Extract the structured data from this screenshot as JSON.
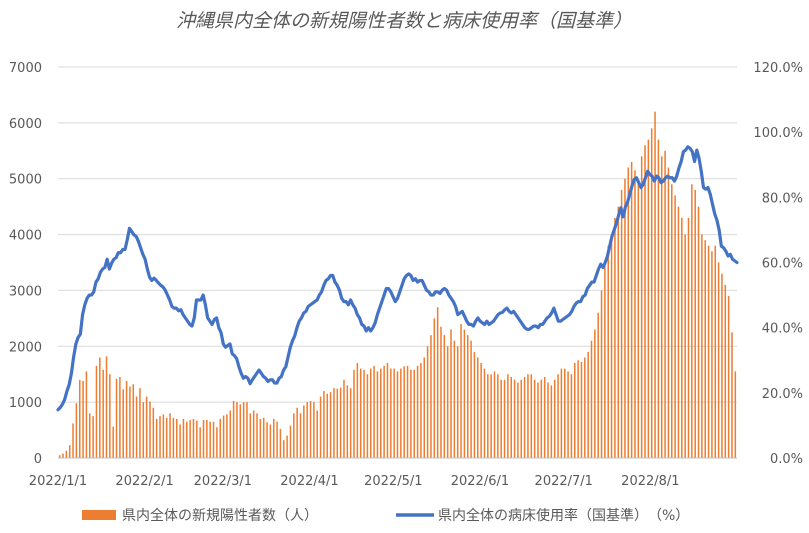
{
  "chart_data": {
    "type": "bar+line",
    "title": "沖縄県内全体の新規陽性者数と病床使用率（国基準）",
    "x_tick_labels": [
      "2022/1/1",
      "2022/2/1",
      "2022/3/1",
      "2022/4/1",
      "2022/5/1",
      "2022/6/1",
      "2022/7/1",
      "2022/8/1"
    ],
    "x_start": "2022/1/1",
    "x_end": "2022/8/31",
    "y_left": {
      "min": 0,
      "max": 7000,
      "ticks": [
        "0",
        "1000",
        "2000",
        "3000",
        "4000",
        "5000",
        "6000",
        "7000"
      ]
    },
    "y_right": {
      "min": 0,
      "max": 120,
      "ticks": [
        "0.0%",
        "20.0%",
        "40.0%",
        "60.0%",
        "80.0%",
        "100.0%",
        "120.0%"
      ]
    },
    "grid": "horizontal",
    "legend_position": "bottom",
    "series": [
      {
        "name": "県内全体の新規陽性者数（人）",
        "type": "bar",
        "axis": "left",
        "color": "#ED7D31",
        "values": [
          50,
          80,
          130,
          230,
          620,
          980,
          1400,
          1380,
          1550,
          800,
          750,
          1650,
          1800,
          1580,
          1820,
          1500,
          560,
          1420,
          1450,
          1230,
          1380,
          1280,
          1320,
          1100,
          1250,
          1000,
          1100,
          1010,
          900,
          700,
          750,
          780,
          720,
          800,
          720,
          700,
          600,
          700,
          650,
          680,
          700,
          670,
          550,
          680,
          680,
          650,
          650,
          550,
          700,
          760,
          780,
          850,
          1020,
          1000,
          960,
          1000,
          1000,
          800,
          850,
          800,
          700,
          720,
          640,
          600,
          700,
          650,
          520,
          320,
          400,
          580,
          800,
          900,
          800,
          940,
          1000,
          1020,
          1000,
          850,
          1100,
          1200,
          1150,
          1180,
          1250,
          1240,
          1260,
          1400,
          1300,
          1250,
          1580,
          1700,
          1600,
          1580,
          1500,
          1600,
          1650,
          1550,
          1600,
          1650,
          1700,
          1600,
          1600,
          1550,
          1600,
          1640,
          1650,
          1580,
          1580,
          1650,
          1700,
          1800,
          2000,
          2200,
          2500,
          2700,
          2350,
          2200,
          2000,
          2300,
          2100,
          2000,
          2400,
          2300,
          2200,
          2100,
          1900,
          1800,
          1700,
          1600,
          1500,
          1500,
          1550,
          1500,
          1400,
          1400,
          1500,
          1450,
          1400,
          1350,
          1400,
          1450,
          1500,
          1500,
          1400,
          1350,
          1400,
          1450,
          1350,
          1300,
          1400,
          1500,
          1600,
          1600,
          1550,
          1500,
          1700,
          1750,
          1720,
          1800,
          1900,
          2100,
          2300,
          2600,
          3000,
          3500,
          3800,
          4000,
          4300,
          4500,
          4800,
          5000,
          5200,
          5300,
          5150,
          4900,
          5400,
          5600,
          5700,
          5900,
          6200,
          5700,
          5400,
          5500,
          5200,
          4900,
          4700,
          4500,
          4300,
          4000,
          4300,
          4900,
          4800,
          4500,
          4000,
          3900,
          3800,
          3700,
          3800,
          3500,
          3300,
          3100,
          2900,
          2250,
          1550
        ]
      },
      {
        "name": "県内全体の病床使用率（国基準）　（%）",
        "type": "line",
        "axis": "right",
        "color": "#4472C4",
        "values": [
          14.8,
          15.5,
          16.5,
          18,
          20.5,
          22.5,
          26,
          31,
          35,
          37,
          38,
          44,
          47,
          49,
          50,
          50,
          51,
          54,
          55,
          57,
          58,
          58.5,
          61,
          58,
          59.8,
          61,
          61.5,
          63,
          63,
          64,
          64,
          67,
          70.5,
          69.5,
          68.5,
          68,
          66.5,
          64.5,
          62.5,
          61,
          58,
          55.5,
          54.5,
          55.2,
          54.5,
          53.7,
          53,
          52.5,
          51.5,
          50,
          48.5,
          46.5,
          46,
          46,
          45.2,
          45.5,
          44,
          43,
          42,
          41,
          40.5,
          43,
          48.5,
          48.5,
          48.5,
          50,
          47,
          43,
          42,
          41,
          42.5,
          43,
          40,
          38.5,
          35,
          34,
          34.5,
          35,
          32,
          31.4,
          30.5,
          28,
          26,
          24.5,
          25,
          24.5,
          22.8,
          24,
          25,
          26,
          27,
          26,
          25,
          24.5,
          23.5,
          24,
          24,
          23,
          23,
          24.5,
          25,
          27,
          28,
          31,
          34,
          36,
          37.5,
          40,
          42,
          43,
          44.5,
          45,
          46.5,
          47,
          47.5,
          48,
          48.5,
          50,
          51,
          53,
          54.5,
          55,
          56,
          56,
          54,
          53,
          51.5,
          49,
          48,
          48,
          47,
          48.5,
          47,
          46,
          44,
          43,
          41,
          40.5,
          39,
          40,
          39,
          40,
          41.5,
          44,
          46,
          48,
          50,
          52,
          52,
          51,
          49.5,
          48,
          49,
          51,
          53,
          55,
          56,
          56.5,
          56,
          54.5,
          55,
          54,
          54.5,
          54.5,
          53,
          51.5,
          51,
          50,
          50,
          51,
          51,
          50.5,
          51.5,
          52,
          51.5,
          50,
          49,
          48,
          46.5,
          44,
          44.5,
          45,
          43.5,
          42,
          41,
          41,
          40.5,
          42,
          43,
          42,
          41.5,
          41,
          42,
          41,
          41.5,
          42,
          43,
          44,
          44.5,
          44.7,
          45.5,
          46,
          45,
          44.5,
          45,
          44,
          43,
          42,
          41,
          40,
          39.5,
          39.5,
          40,
          40.5,
          40.5,
          40,
          41,
          41,
          42,
          43,
          43.5,
          44.5,
          46,
          44,
          42,
          42,
          42.5,
          43,
          43.5,
          44,
          45,
          46.5,
          47.5,
          48,
          48,
          49.5,
          50,
          52,
          53,
          54,
          54,
          56,
          58,
          59.5,
          58.5,
          60,
          62,
          65,
          68,
          70,
          72,
          74.5,
          76.8,
          74,
          77,
          78.5,
          81,
          83.5,
          85.5,
          86,
          84.5,
          83,
          84,
          86,
          88,
          87,
          86.5,
          85,
          86.5,
          86,
          84.5,
          85,
          86,
          86.5,
          86,
          86,
          85,
          86.5,
          89,
          91,
          94,
          94.5,
          95.5,
          95,
          94,
          91,
          94.5,
          92,
          88,
          83,
          82.5,
          83,
          81,
          78,
          75,
          73,
          70,
          65,
          64.5,
          63.5,
          62,
          62.5,
          61,
          60.5,
          60
        ]
      }
    ]
  }
}
